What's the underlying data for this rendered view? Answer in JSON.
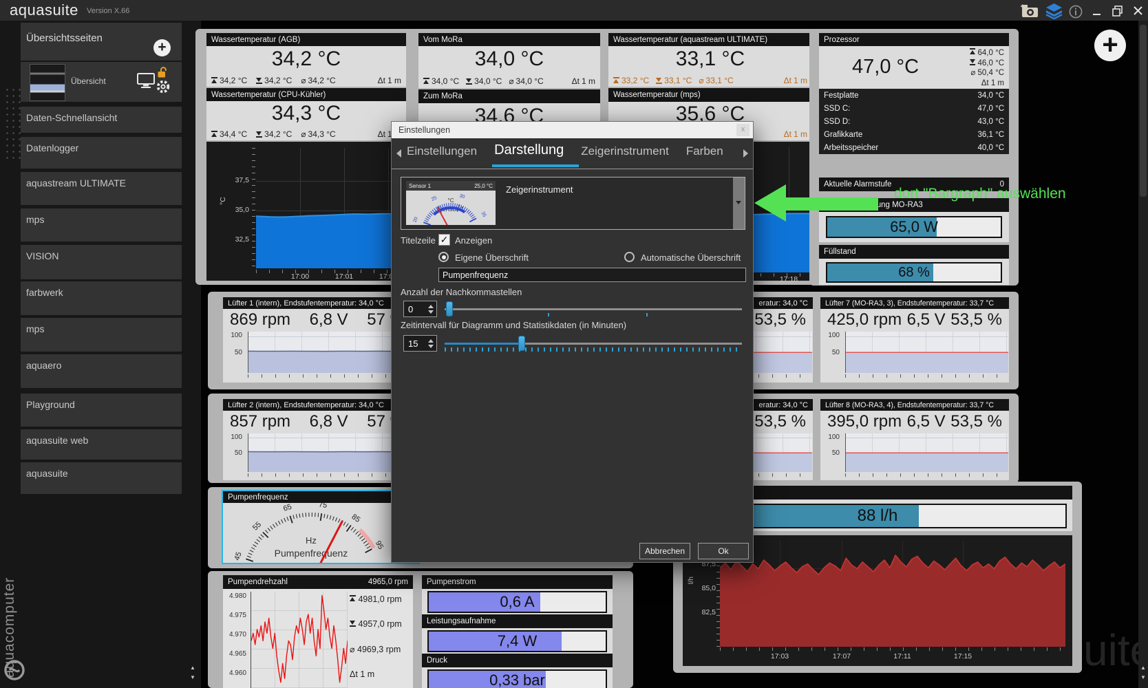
{
  "window": {
    "app": "aquasuite",
    "version": "Version X.66"
  },
  "icons": {
    "avg": "⌀",
    "dt": "Δt",
    "check": "✓",
    "plus": "+",
    "info": "i",
    "close_dialog": "x",
    "scroll_up": "▲",
    "scroll_down": "▼"
  },
  "sidebar": {
    "section": "Übersichtsseiten",
    "overview": "Übersicht",
    "items": [
      "Daten-Schnellansicht",
      "Datenlogger",
      "aquastream ULTIMATE",
      "mps",
      "VISION",
      "farbwerk",
      "mps",
      "aquaero",
      "Playground",
      "aquasuite web",
      "aquasuite"
    ],
    "brand": "aquacomputer"
  },
  "annotation": {
    "text": "dort \"Bargraph\" auswählen",
    "color": "#54e254"
  },
  "watermark": "uite",
  "dialog": {
    "title": "Einstellungen",
    "tabs": [
      "Einstellungen",
      "Darstellung",
      "Zeigerinstrument",
      "Farben"
    ],
    "active_tab": "Darstellung",
    "dropdown_label": "Zeigerinstrument",
    "titelzeile_label": "Titelzeile",
    "anzeigen": "Anzeigen",
    "radio_own": "Eigene Überschrift",
    "radio_auto": "Automatische Überschrift",
    "input_value": "Pumpenfrequenz",
    "decimals_label": "Anzahl der Nachkommastellen",
    "decimals_value": "0",
    "interval_label": "Zeitintervall für Diagramm und Statistikdaten (in Minuten)",
    "interval_value": "15",
    "cancel": "Abbrechen",
    "ok": "Ok"
  },
  "tiles": {
    "agb": {
      "title": "Wassertemperatur (AGB)",
      "value": "34,2 °C",
      "max": "34,2 °C",
      "min": "34,2 °C",
      "avg": "34,2 °C",
      "dt": "1 m"
    },
    "cpu": {
      "title": "Wassertemperatur (CPU-Kühler)",
      "value": "34,3 °C",
      "max": "34,4 °C",
      "min": "34,2 °C",
      "avg": "34,3 °C",
      "dt": "1 m"
    },
    "vom": {
      "title": "Vom MoRa",
      "value": "34,0 °C",
      "max": "34,0 °C",
      "min": "34,0 °C",
      "avg": "34,0 °C",
      "dt": "1 m"
    },
    "zum": {
      "title": "Zum MoRa",
      "value": "34,6 °C"
    },
    "aqs": {
      "title": "Wassertemperatur (aquastream ULTIMATE)",
      "value": "33,1 °C",
      "max": "33,2 °C",
      "min": "33,1 °C",
      "avg": "33,1 °C",
      "dt": "1 m"
    },
    "mps": {
      "title": "Wassertemperatur (mps)",
      "value": "35,6 °C",
      "dt": "1 m"
    },
    "proz": {
      "title": "Prozessor",
      "value": "47,0 °C",
      "max": "64,0 °C",
      "min": "46,0 °C",
      "avg": "50,4 °C",
      "dt": "1 m",
      "rows": [
        {
          "n": "Festplatte",
          "v": "34,0 °C"
        },
        {
          "n": "SSD C:",
          "v": "47,0 °C"
        },
        {
          "n": "SSD D:",
          "v": "43,0 °C"
        },
        {
          "n": "Grafikkarte",
          "v": "36,1 °C"
        },
        {
          "n": "Arbeitsspeicher",
          "v": "40,0 °C"
        }
      ]
    },
    "alarm": {
      "title": "Aktuelle Alarmstufe",
      "value": "0"
    },
    "leistung": {
      "title": "Leistungsmessung MO-RA3",
      "value": "65,0 W",
      "pct": 63
    },
    "fuellstand": {
      "title": "Füllstand",
      "value": "68 %",
      "pct": 61
    },
    "durchfluss": {
      "title": "",
      "value": "88 l/h",
      "pct": 61
    },
    "fans": [
      {
        "title": "Lüfter 1 (intern), Endstufentemperatur: 34,0 °C",
        "rpm": "869 rpm",
        "volt": "6,8 V",
        "pct": "57 %"
      },
      {
        "title": "eratur: 34,0 °C",
        "pct": "53,5 %"
      },
      {
        "title": "Lüfter 7 (MO-RA3, 3), Endstufentemperatur: 33,7 °C",
        "rpm": "425,0 rpm",
        "volt": "6,5 V",
        "pct": "53,5 %"
      },
      {
        "title": "Lüfter 2 (intern), Endstufentemperatur: 34,0 °C",
        "rpm": "857 rpm",
        "volt": "6,8 V",
        "pct": "57 %"
      },
      {
        "title": "eratur: 34,0 °C",
        "pct": "53,5 %"
      },
      {
        "title": "Lüfter 8 (MO-RA3, 4), Endstufentemperatur: 33,7 °C",
        "rpm": "395,0 rpm",
        "volt": "6,5 V",
        "pct": "53,5 %"
      }
    ],
    "gauge_title": "Pumpenfrequenz",
    "drehzahl": {
      "title": "Pumpendrehzahl",
      "value": "4965,0 rpm",
      "max": "4981,0 rpm",
      "min": "4957,0 rpm",
      "avg": "4969,3 rpm",
      "dt": "1 m"
    },
    "pump": [
      {
        "title": "Pumpenstrom",
        "value": "0,6 A",
        "pct": 63
      },
      {
        "title": "Leistungsaufnahme",
        "value": "7,4 W",
        "pct": 75
      },
      {
        "title": "Druck",
        "value": "0,33 bar",
        "pct": 66
      }
    ]
  },
  "charts": {
    "water": {
      "type": "area",
      "ylabel": "°C",
      "ymin": 30.0,
      "ymax": 40.2,
      "yticks": [
        "37,5",
        "35,0",
        "32,5"
      ],
      "xticks": [
        "17:00",
        "17:01",
        "17:02"
      ],
      "stroke": "#2e8fe0",
      "fill": "#0f74d8",
      "lw": 2,
      "values": [
        34.42,
        34.4,
        34.38,
        34.36,
        34.35,
        34.35,
        34.36,
        34.38,
        34.4,
        34.42,
        34.44,
        34.46,
        34.47,
        34.48,
        34.5,
        34.52,
        34.54,
        34.56,
        34.58,
        34.6,
        34.6,
        34.59,
        34.58,
        34.6,
        34.62,
        34.63,
        34.62,
        34.61,
        34.63,
        34.65
      ]
    },
    "aqs": {
      "type": "area",
      "ymin": 30.0,
      "ymax": 40.2,
      "xticks": [
        "17:18"
      ],
      "stroke": "#2e8fe0",
      "fill": "#0f74d8",
      "lw": 2,
      "values": [
        34.4,
        34.42,
        34.44,
        34.45,
        34.47,
        34.49,
        34.5,
        34.52,
        34.54,
        34.55,
        34.57,
        34.59,
        34.6,
        34.62,
        34.64,
        34.66,
        34.68,
        34.7,
        34.72,
        34.74,
        34.76,
        34.78,
        34.79,
        34.8,
        34.8,
        34.8
      ]
    },
    "fan_intern": {
      "type": "area",
      "ymin": -5,
      "ymax": 113,
      "yticks": [
        "100",
        "50"
      ],
      "stroke": "#5a6690",
      "fill": "#b9c1de",
      "lw": 1.5,
      "values": [
        57.2,
        57,
        56.9,
        57,
        57.1,
        57,
        57,
        56.8,
        57,
        57.1,
        57,
        57,
        57.2,
        57,
        56.9,
        57
      ]
    },
    "fan_mora": {
      "type": "area",
      "ymin": -5,
      "ymax": 113,
      "yticks": [
        "100",
        "50"
      ],
      "stroke": "#e05555",
      "fill": "#c0c8e2",
      "lw": 1.5,
      "values": [
        53.5,
        53.5,
        53.6,
        53.5,
        53.4,
        53.5,
        53.5,
        53.6,
        53.5,
        53.5,
        53.4,
        53.5,
        53.6,
        53.5,
        53.5,
        53.5
      ]
    },
    "drehzahl": {
      "type": "line",
      "ymin": 4956.5,
      "ymax": 4982,
      "yticks": [
        "4.980",
        "4.975",
        "4.970",
        "4.965",
        "4.960"
      ],
      "stroke": "#ea1212",
      "lw": 1.4,
      "values": [
        4969,
        4971,
        4968,
        4972,
        4970,
        4973,
        4969,
        4974,
        4971,
        4975,
        4970,
        4967,
        4971,
        4965,
        4961,
        4958,
        4963,
        4959,
        4965,
        4969,
        4968,
        4964,
        4970,
        4973,
        4971,
        4975,
        4972,
        4968,
        4974,
        4976,
        4971,
        4975,
        4969,
        4965,
        4972,
        4967,
        4981,
        4977,
        4972,
        4975,
        4970,
        4967,
        4973,
        4969,
        4964,
        4958,
        4962,
        4967,
        4963,
        4969
      ]
    },
    "flow": {
      "type": "area",
      "ylabel": "l/h",
      "ymin": 79.4,
      "ymax": 90.4,
      "yticks": [
        "87,5",
        "85,0",
        "82,5"
      ],
      "xticks": [
        "17:03",
        "17:07",
        "17:11",
        "17:15"
      ],
      "stroke": "#c23636",
      "fill": "#9a2b2b",
      "lw": 1.6,
      "values": [
        87.6,
        88.1,
        87.4,
        88.3,
        87.8,
        87.2,
        88.0,
        87.5,
        88.4,
        87.9,
        87.3,
        87.8,
        88.2,
        87.6,
        87.1,
        87.7,
        88.0,
        87.4,
        86.9,
        87.6,
        88.1,
        87.8,
        87.3,
        88.6,
        87.9,
        87.5,
        88.2,
        87.7,
        87.2,
        87.9,
        88.4,
        87.6,
        88.9,
        88.2,
        87.7,
        88.5,
        88.8,
        88.1,
        87.6,
        88.3,
        87.9,
        87.4,
        88.0,
        88.6,
        87.8,
        87.3,
        87.9,
        88.2,
        87.6,
        88.0,
        87.5,
        88.3,
        88.7,
        88.0,
        87.5,
        88.1,
        87.7,
        88.4,
        87.9,
        87.3,
        87.8,
        88.2,
        87.6,
        88.0
      ]
    }
  },
  "gauges": {
    "main": {
      "min": 45,
      "max": 95,
      "value": 82,
      "step_major": 10,
      "labels": [
        "45",
        "55",
        "65",
        "75",
        "85",
        "95"
      ],
      "danger_from": 88,
      "danger_color": "#f2a8a8",
      "unit": "Hz",
      "name": "Pumpenfrequenz",
      "tick_color": "#222222",
      "needle": "#dd1515"
    },
    "thumb": {
      "min": 20,
      "max": 35,
      "value": 24.8,
      "step_major": 5,
      "labels": [
        "20",
        "25",
        "30",
        "35"
      ],
      "band": [
        23,
        32
      ],
      "band_color": "#2b48cc",
      "header": "Sensor 1",
      "header_value": "25,0 °C",
      "unit": "°C",
      "name": "Sensor 1",
      "tick_color": "#2b48cc",
      "needle": "#d03030"
    }
  }
}
